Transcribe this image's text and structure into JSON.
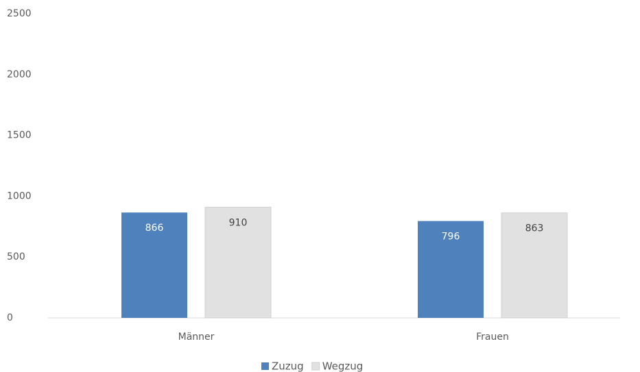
{
  "chart_data": {
    "type": "bar",
    "categories": [
      "Männer",
      "Frauen"
    ],
    "series": [
      {
        "name": "Zuzug",
        "color": "#4f81bd",
        "values": [
          866,
          796
        ]
      },
      {
        "name": "Wegzug",
        "color": "#e1e1e1",
        "values": [
          910,
          863
        ]
      }
    ],
    "ylim": [
      0,
      2500
    ],
    "yticks": [
      0,
      500,
      1000,
      1500,
      2000,
      2500
    ],
    "grid": false,
    "legend": "bottom"
  }
}
